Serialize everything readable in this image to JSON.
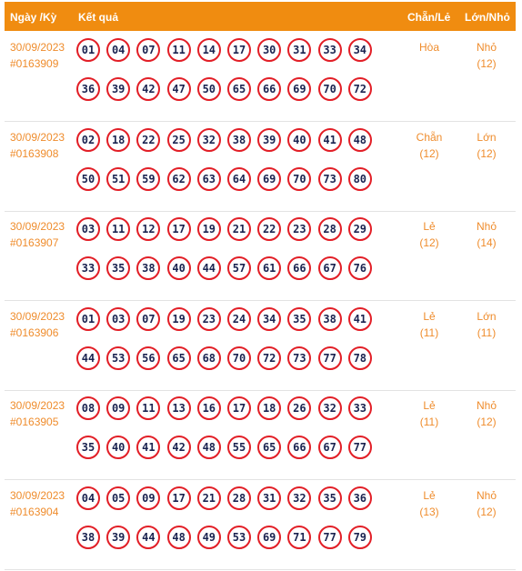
{
  "header": {
    "date_col": "Ngày /Kỳ",
    "result_col": "Kết quả",
    "chanle_col": "Chẵn/Lẻ",
    "lonnho_col": "Lớn/Nhỏ"
  },
  "colors": {
    "header_bg": "#f08c10",
    "ball_border": "#e21e26",
    "accent_text": "#ef8c2c"
  },
  "rows": [
    {
      "date": "30/09/2023",
      "id": "#0163909",
      "numbers": [
        "01",
        "04",
        "07",
        "11",
        "14",
        "17",
        "30",
        "31",
        "33",
        "34",
        "36",
        "39",
        "42",
        "47",
        "50",
        "65",
        "66",
        "69",
        "70",
        "72"
      ],
      "chanle": "Hòa",
      "chanle_count": "",
      "lonnho": "Nhỏ",
      "lonnho_count": "(12)"
    },
    {
      "date": "30/09/2023",
      "id": "#0163908",
      "numbers": [
        "02",
        "18",
        "22",
        "25",
        "32",
        "38",
        "39",
        "40",
        "41",
        "48",
        "50",
        "51",
        "59",
        "62",
        "63",
        "64",
        "69",
        "70",
        "73",
        "80"
      ],
      "chanle": "Chẵn",
      "chanle_count": "(12)",
      "lonnho": "Lớn",
      "lonnho_count": "(12)"
    },
    {
      "date": "30/09/2023",
      "id": "#0163907",
      "numbers": [
        "03",
        "11",
        "12",
        "17",
        "19",
        "21",
        "22",
        "23",
        "28",
        "29",
        "33",
        "35",
        "38",
        "40",
        "44",
        "57",
        "61",
        "66",
        "67",
        "76"
      ],
      "chanle": "Lẻ",
      "chanle_count": "(12)",
      "lonnho": "Nhỏ",
      "lonnho_count": "(14)"
    },
    {
      "date": "30/09/2023",
      "id": "#0163906",
      "numbers": [
        "01",
        "03",
        "07",
        "19",
        "23",
        "24",
        "34",
        "35",
        "38",
        "41",
        "44",
        "53",
        "56",
        "65",
        "68",
        "70",
        "72",
        "73",
        "77",
        "78"
      ],
      "chanle": "Lẻ",
      "chanle_count": "(11)",
      "lonnho": "Lớn",
      "lonnho_count": "(11)"
    },
    {
      "date": "30/09/2023",
      "id": "#0163905",
      "numbers": [
        "08",
        "09",
        "11",
        "13",
        "16",
        "17",
        "18",
        "26",
        "32",
        "33",
        "35",
        "40",
        "41",
        "42",
        "48",
        "55",
        "65",
        "66",
        "67",
        "77"
      ],
      "chanle": "Lẻ",
      "chanle_count": "(11)",
      "lonnho": "Nhỏ",
      "lonnho_count": "(12)"
    },
    {
      "date": "30/09/2023",
      "id": "#0163904",
      "numbers": [
        "04",
        "05",
        "09",
        "17",
        "21",
        "28",
        "31",
        "32",
        "35",
        "36",
        "38",
        "39",
        "44",
        "48",
        "49",
        "53",
        "69",
        "71",
        "77",
        "79"
      ],
      "chanle": "Lẻ",
      "chanle_count": "(13)",
      "lonnho": "Nhỏ",
      "lonnho_count": "(12)"
    }
  ]
}
